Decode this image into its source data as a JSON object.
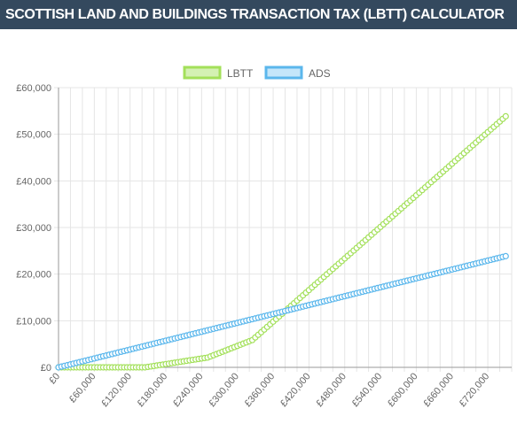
{
  "header": {
    "title": "SCOTTISH LAND AND BUILDINGS TRANSACTION TAX (LBTT) CALCULATOR"
  },
  "colors": {
    "header_bg": "#34495e",
    "lbtt": "#a3e05a",
    "lbtt_fill": "#d4f1b3",
    "ads": "#5bb7ec",
    "ads_fill": "#c4e6fa",
    "grid": "#e5e5e5",
    "axis": "#999999"
  },
  "chart_data": {
    "type": "line",
    "xlabel": "",
    "ylabel": "",
    "xlim": [
      0,
      760000
    ],
    "ylim": [
      0,
      60000
    ],
    "x_step": 5000,
    "x_ticks": [
      0,
      60000,
      120000,
      180000,
      240000,
      300000,
      360000,
      420000,
      480000,
      540000,
      600000,
      660000,
      720000
    ],
    "x_tick_labels": [
      "£0",
      "£60,000",
      "£120,000",
      "£180,000",
      "£240,000",
      "£300,000",
      "£360,000",
      "£420,000",
      "£480,000",
      "£540,000",
      "£600,000",
      "£660,000",
      "£720,000"
    ],
    "y_ticks": [
      0,
      10000,
      20000,
      30000,
      40000,
      50000,
      60000
    ],
    "y_tick_labels": [
      "£0",
      "£10,000",
      "£20,000",
      "£30,000",
      "£40,000",
      "£50,000",
      "£60,000"
    ],
    "grid": true,
    "legend_position": "top-center",
    "series": [
      {
        "name": "LBTT",
        "points": [
          [
            0,
            0
          ],
          [
            145000,
            0
          ],
          [
            250000,
            2100
          ],
          [
            325000,
            5850
          ],
          [
            750000,
            53850
          ]
        ]
      },
      {
        "name": "ADS",
        "points": [
          [
            0,
            0
          ],
          [
            750000,
            23850
          ]
        ]
      }
    ]
  }
}
